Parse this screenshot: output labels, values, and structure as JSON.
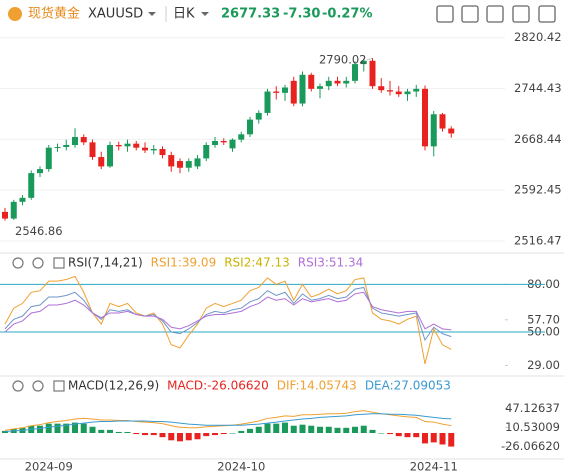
{
  "header": {
    "name": "现货黄金",
    "symbol": "XAUUSD",
    "period": "日K",
    "price": "2677.33",
    "change": "-7.30",
    "change_pct": "-0.27%"
  },
  "chart_data": [
    {
      "type": "candlestick",
      "categories": [
        null,
        null,
        null,
        null,
        null,
        "2024-09",
        null,
        null,
        null,
        null,
        null,
        null,
        null,
        null,
        null,
        null,
        null,
        null,
        null,
        null,
        null,
        null,
        null,
        null,
        null,
        null,
        null,
        "2024-10",
        null,
        null,
        null,
        null,
        null,
        null,
        null,
        null,
        null,
        null,
        null,
        null,
        null,
        null,
        null,
        null,
        null,
        null,
        null,
        null,
        null,
        "2024-11",
        null,
        null
      ],
      "open": [
        2560,
        2550,
        2575,
        2581,
        2618,
        2624,
        2656,
        2657,
        2660,
        2672,
        2664,
        2642,
        2628,
        2660,
        2658,
        2662,
        2656,
        2652,
        2654,
        2645,
        2636,
        2626,
        2628,
        2640,
        2660,
        2666,
        2655,
        2668,
        2676,
        2698,
        2708,
        2740,
        2738,
        2756,
        2722,
        2765,
        2744,
        2748,
        2756,
        2752,
        2756,
        2781,
        2786,
        2748,
        2742,
        2740,
        2736,
        2740,
        2744,
        2658,
        2706,
        2684.63
      ],
      "high": [
        2566,
        2578,
        2585,
        2622,
        2628,
        2660,
        2662,
        2668,
        2685,
        2676,
        2668,
        2650,
        2665,
        2665,
        2668,
        2666,
        2664,
        2660,
        2658,
        2650,
        2640,
        2640,
        2645,
        2664,
        2672,
        2670,
        2670,
        2680,
        2702,
        2712,
        2744,
        2748,
        2750,
        2762,
        2770,
        2768,
        2752,
        2762,
        2762,
        2762,
        2785,
        2789,
        2790.02,
        2760,
        2756,
        2748,
        2744,
        2750,
        2749,
        2711,
        2708,
        2688
      ],
      "low": [
        2546.86,
        2548,
        2570,
        2578,
        2612,
        2620,
        2650,
        2652,
        2656,
        2660,
        2638,
        2624,
        2626,
        2652,
        2650,
        2652,
        2648,
        2646,
        2640,
        2620,
        2618,
        2620,
        2624,
        2636,
        2656,
        2660,
        2650,
        2664,
        2672,
        2692,
        2704,
        2728,
        2726,
        2718,
        2718,
        2740,
        2730,
        2742,
        2748,
        2746,
        2752,
        2770,
        2744,
        2738,
        2734,
        2732,
        2726,
        2732,
        2652,
        2643,
        2680,
        2671
      ],
      "close": [
        2550,
        2575,
        2581,
        2618,
        2624,
        2656,
        2657,
        2660,
        2672,
        2664,
        2642,
        2628,
        2660,
        2658,
        2662,
        2656,
        2652,
        2654,
        2645,
        2628,
        2626,
        2636,
        2640,
        2660,
        2666,
        2664,
        2668,
        2676,
        2698,
        2708,
        2740,
        2738,
        2746,
        2722,
        2765,
        2744,
        2748,
        2756,
        2752,
        2756,
        2781,
        2786,
        2748,
        2742,
        2740,
        2736,
        2740,
        2744,
        2658,
        2706,
        2684.63,
        2677.33
      ],
      "up_color": "#1a9a5a",
      "down_color": "#e8231f",
      "ylim": [
        2500,
        2835
      ],
      "yticks": [
        2820.42,
        2744.43,
        2668.44,
        2592.45,
        2516.47
      ],
      "grid": true
    },
    {
      "type": "line",
      "title": "RSI(7,14,21)",
      "series": [
        {
          "name": "RSI1:39.09",
          "color": "#f0a030",
          "values": [
            55,
            65,
            68,
            75,
            76,
            82,
            82,
            83,
            85,
            75,
            62,
            55,
            68,
            66,
            68,
            62,
            60,
            62,
            55,
            42,
            40,
            48,
            55,
            65,
            68,
            66,
            68,
            70,
            76,
            78,
            84,
            80,
            82,
            70,
            80,
            72,
            74,
            77,
            74,
            76,
            83,
            84,
            62,
            58,
            57,
            55,
            58,
            60,
            30,
            52,
            42,
            39.09
          ]
        },
        {
          "name": "RSI2:47.13",
          "color": "#c9b400",
          "line_color": "#6f95c8",
          "values": [
            52,
            58,
            60,
            66,
            67,
            72,
            72,
            73,
            75,
            70,
            62,
            58,
            64,
            63,
            64,
            61,
            60,
            61,
            57,
            50,
            49,
            52,
            56,
            61,
            63,
            62,
            64,
            65,
            69,
            71,
            76,
            73,
            75,
            68,
            74,
            70,
            71,
            73,
            71,
            72,
            77,
            78,
            65,
            62,
            61,
            60,
            61,
            62,
            45,
            53,
            49,
            47.13
          ]
        },
        {
          "name": "RSI3:51.34",
          "color": "#b070d8",
          "values": [
            50,
            55,
            57,
            62,
            63,
            67,
            67,
            68,
            70,
            67,
            62,
            59,
            62,
            62,
            63,
            61,
            60,
            60,
            58,
            53,
            52,
            54,
            57,
            60,
            61,
            61,
            62,
            63,
            66,
            68,
            72,
            70,
            71,
            67,
            71,
            69,
            70,
            71,
            69,
            70,
            74,
            75,
            66,
            64,
            63,
            62,
            63,
            63,
            52,
            55,
            52,
            51.34
          ]
        }
      ],
      "ylim": [
        23,
        89
      ],
      "yticks": [
        {
          "value": 80,
          "label": "80.00"
        },
        {
          "value": 57.7,
          "label": "57.70"
        },
        {
          "value": 50,
          "label": "50.00"
        },
        {
          "value": 29,
          "label": "29.00"
        }
      ],
      "hlines": [
        80,
        50
      ],
      "hline_color": "#2aa8c0"
    },
    {
      "type": "macd",
      "title": "MACD(12,26,9)",
      "series": [
        {
          "name": "MACD:-26.06620",
          "color": "#e8231f",
          "up_color": "#1a9a5a",
          "values": [
            4,
            8,
            10,
            14,
            14,
            18,
            18,
            18,
            20,
            18,
            12,
            6,
            6,
            2,
            2,
            -2,
            -4,
            -4,
            -8,
            -14,
            -16,
            -14,
            -12,
            -6,
            -4,
            -2,
            0,
            4,
            8,
            12,
            18,
            18,
            20,
            14,
            16,
            14,
            12,
            12,
            10,
            10,
            12,
            14,
            6,
            0,
            -2,
            -6,
            -8,
            -8,
            -20,
            -18,
            -22,
            -26.0662
          ]
        },
        {
          "name": "DIF:14.05743",
          "color": "#f0a030",
          "values": [
            5,
            8,
            10,
            14,
            16,
            20,
            22,
            24,
            27,
            28,
            27,
            25,
            25,
            24,
            24,
            22,
            21,
            20,
            18,
            14,
            11,
            10,
            10,
            12,
            13,
            14,
            15,
            17,
            20,
            23,
            28,
            30,
            33,
            32,
            35,
            35,
            36,
            37,
            37,
            38,
            41,
            43,
            40,
            37,
            35,
            33,
            31,
            30,
            22,
            21,
            17,
            14.05743
          ]
        },
        {
          "name": "DEA:27.09053",
          "color": "#3a9ad0",
          "values": [
            3,
            4,
            5,
            7,
            9,
            11,
            13,
            15,
            17,
            19,
            21,
            22,
            22,
            23,
            23,
            23,
            23,
            22,
            22,
            21,
            19,
            17,
            16,
            15,
            15,
            15,
            15,
            15,
            16,
            17,
            19,
            21,
            23,
            25,
            27,
            28,
            30,
            31,
            32,
            33,
            35,
            36,
            37,
            37,
            36,
            36,
            35,
            34,
            32,
            30,
            28,
            27.09053
          ]
        }
      ],
      "ylim": [
        -48,
        73
      ],
      "yticks": [
        47.12637,
        10.53009,
        {
          "value": -26.0662,
          "label": "-26.06620"
        }
      ]
    }
  ]
}
